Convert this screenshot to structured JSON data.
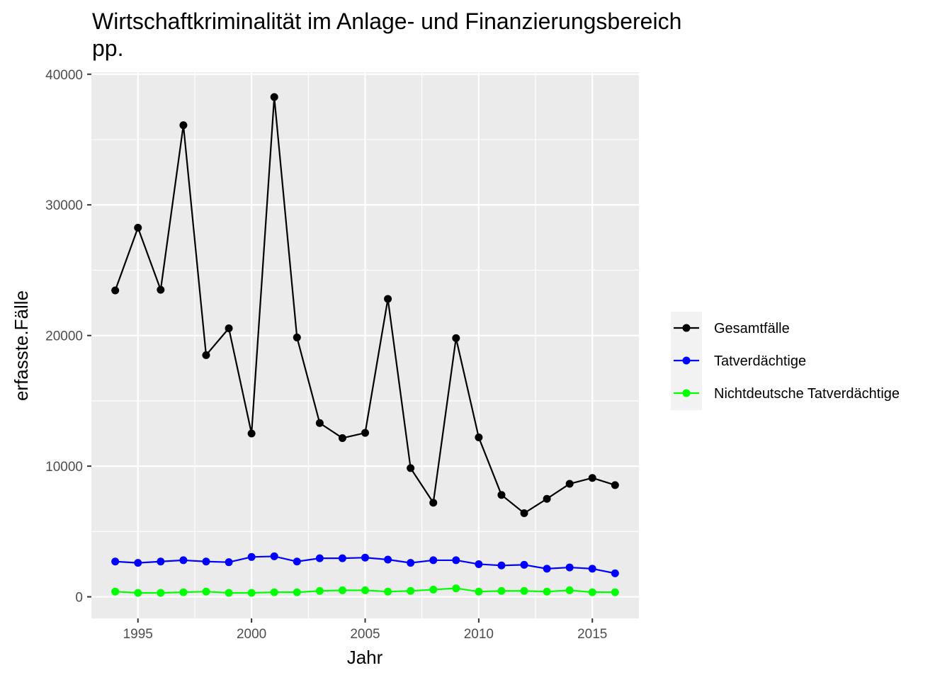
{
  "chart_data": {
    "type": "line",
    "title_lines": [
      "Wirtschaftkriminalität im Anlage- und Finanzierungsbereich",
      "pp."
    ],
    "xlabel": "Jahr",
    "ylabel": "erfasste.Fälle",
    "x": [
      1994,
      1995,
      1996,
      1997,
      1998,
      1999,
      2000,
      2001,
      2002,
      2003,
      2004,
      2005,
      2006,
      2007,
      2008,
      2009,
      2010,
      2011,
      2012,
      2013,
      2014,
      2015,
      2016
    ],
    "xlim": [
      1992.95,
      2017.05
    ],
    "ylim": [
      -1650,
      40150
    ],
    "x_ticks": [
      1995,
      2000,
      2005,
      2010,
      2015
    ],
    "y_ticks": [
      0,
      10000,
      20000,
      30000,
      40000
    ],
    "grid": true,
    "legend_position": "right",
    "series": [
      {
        "name": "Gesamtfälle",
        "color": "#000000",
        "values": [
          23450,
          28250,
          23500,
          36100,
          18500,
          20550,
          12500,
          38250,
          19850,
          13300,
          12150,
          12550,
          22800,
          9850,
          7200,
          19800,
          12200,
          7800,
          6400,
          7500,
          8650,
          9100,
          8550
        ]
      },
      {
        "name": "Tatverdächtige",
        "color": "#0000ff",
        "values": [
          2700,
          2600,
          2700,
          2800,
          2700,
          2650,
          3050,
          3100,
          2700,
          2950,
          2950,
          3000,
          2850,
          2600,
          2800,
          2800,
          2500,
          2400,
          2450,
          2150,
          2250,
          2150,
          1800
        ]
      },
      {
        "name": "Nichtdeutsche Tatverdächtige",
        "color": "#00ff00",
        "values": [
          400,
          300,
          300,
          350,
          400,
          300,
          300,
          350,
          350,
          450,
          500,
          500,
          400,
          450,
          550,
          650,
          400,
          450,
          450,
          400,
          500,
          350,
          350
        ]
      }
    ]
  }
}
